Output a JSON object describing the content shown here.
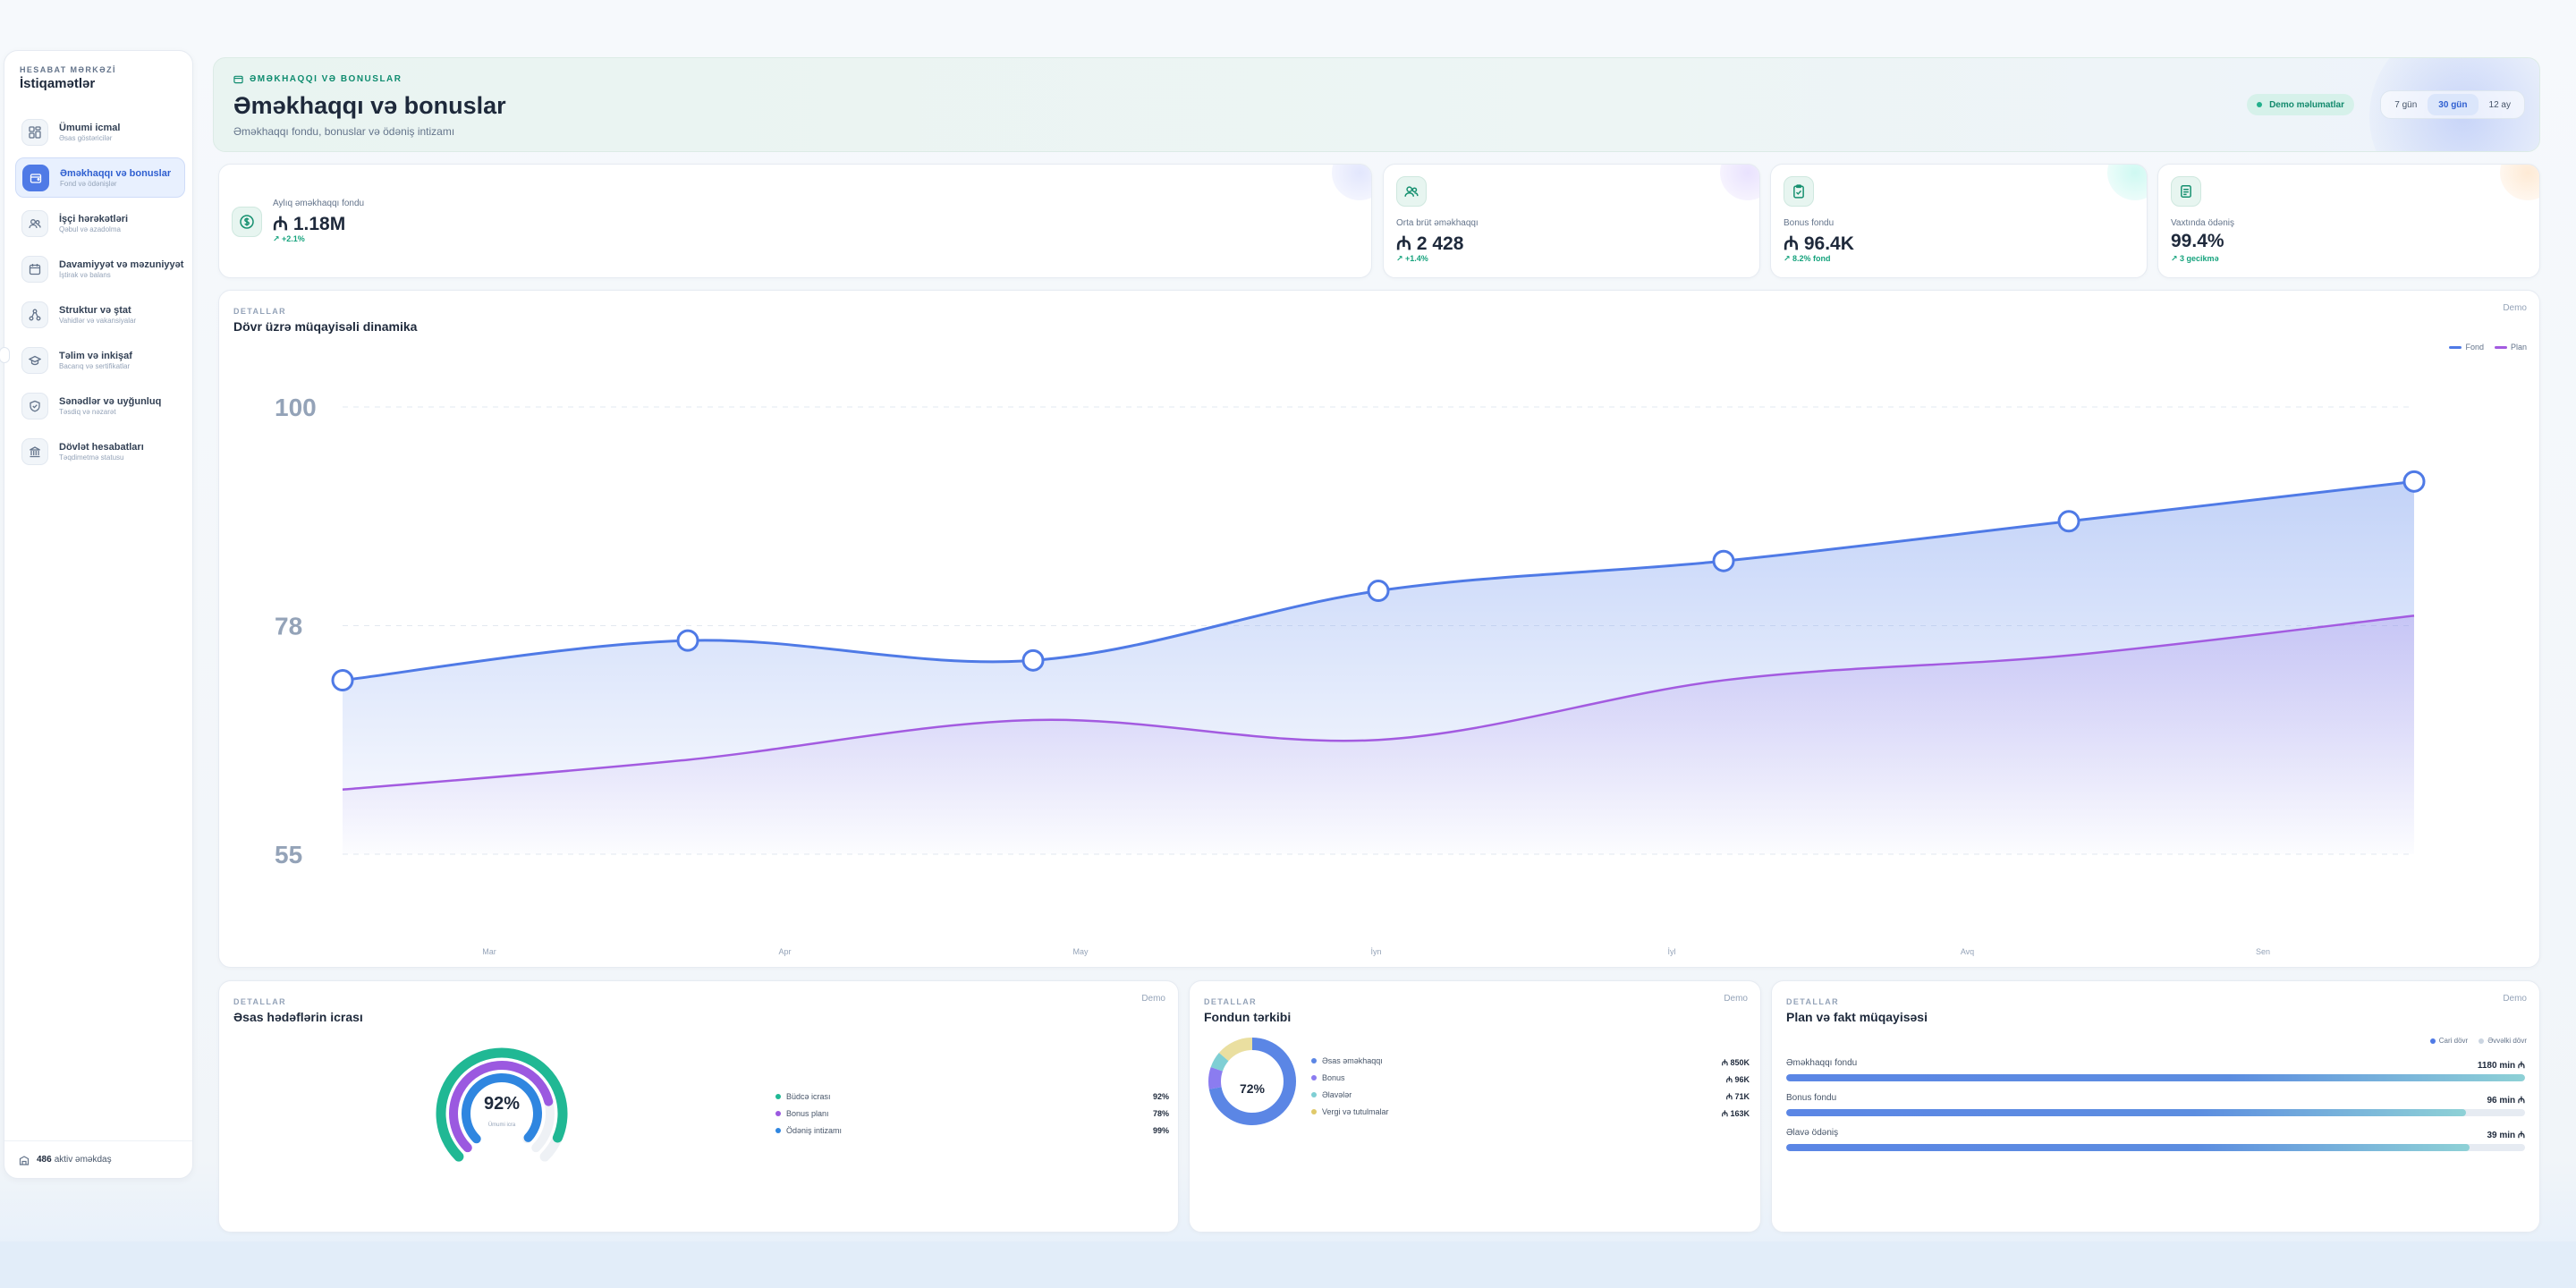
{
  "sidebar": {
    "eyebrow": "HESABAT MƏRKƏZİ",
    "title": "İstiqamətlər",
    "items": [
      {
        "label": "Ümumi icmal",
        "sub": "Əsas göstəricilər",
        "icon": "dashboard-icon"
      },
      {
        "label": "Əməkhaqqı və bonuslar",
        "sub": "Fond və ödənişlər",
        "icon": "wallet-icon"
      },
      {
        "label": "İşçi hərəkətləri",
        "sub": "Qəbul və azadolma",
        "icon": "users-icon"
      },
      {
        "label": "Davamiyyət və məzuniyyət",
        "sub": "İştirak və balans",
        "icon": "calendar-icon"
      },
      {
        "label": "Struktur və ştat",
        "sub": "Vahidlər və vakansiyalar",
        "icon": "org-chart-icon"
      },
      {
        "label": "Təlim və inkişaf",
        "sub": "Bacarıq və sertifikatlar",
        "icon": "graduation-cap-icon"
      },
      {
        "label": "Sənədlər və uyğunluq",
        "sub": "Təsdiq və nəzarət",
        "icon": "shield-icon"
      },
      {
        "label": "Dövlət hesabatları",
        "sub": "Təqdimetmə statusu",
        "icon": "bank-icon"
      }
    ],
    "footer_count": "486",
    "footer_text": "aktiv əməkdaş"
  },
  "header": {
    "eyebrow": "ƏMƏKHAQQI VƏ BONUSLAR",
    "title": "Əməkhaqqı və bonuslar",
    "subtitle": "Əməkhaqqı fondu, bonuslar və ödəniş intizamı",
    "demo_badge": "Demo məlumatlar",
    "periods": [
      "7 gün",
      "30 gün",
      "12 ay"
    ],
    "active_period": "30 gün"
  },
  "kpis": [
    {
      "label": "Aylıq əməkhaqqı fondu",
      "value": "₼ 1.18M",
      "delta": "↗ +2.1%",
      "icon": "dollar-icon",
      "accent": "#8b9cf5"
    },
    {
      "label": "Orta brüt əməkhaqqı",
      "value": "₼ 2 428",
      "delta": "↗ +1.4%",
      "icon": "users-icon",
      "accent": "#a78bfa"
    },
    {
      "label": "Bonus fondu",
      "value": "₼ 96.4K",
      "delta": "↗ 8.2% fond",
      "icon": "clipboard-check-icon",
      "accent": "#5eead4"
    },
    {
      "label": "Vaxtında ödəniş",
      "value": "99.4%",
      "delta": "↗ 3 gecikmə",
      "icon": "document-icon",
      "accent": "#fdba74"
    }
  ],
  "dynamics": {
    "eyebrow": "DETALLAR",
    "title": "Dövr üzrə müqayisəli dinamika",
    "demo": "Demo"
  },
  "chart_data": [
    {
      "type": "area",
      "title": "Dövr üzrə müqayisəli dinamika",
      "x_labels": [
        "Mar",
        "Apr",
        "May",
        "İyn",
        "İyl",
        "Avq",
        "Sen"
      ],
      "y_ticks": [
        55,
        78,
        100
      ],
      "ylim": [
        55,
        100
      ],
      "grid": true,
      "legend": "top-right",
      "series": [
        {
          "name": "Fond",
          "color": "#4f7ae6",
          "values": [
            72.5,
            76.5,
            74.5,
            81.5,
            84.5,
            88.5,
            92.5
          ]
        },
        {
          "name": "Plan",
          "color": "#a35be0",
          "values": [
            61.5,
            64.5,
            68.5,
            66.5,
            72.5,
            75.0,
            79.0
          ]
        }
      ]
    },
    {
      "type": "radial",
      "title": "Əsas hədəflərin icrası",
      "center_value": "92%",
      "center_label": "Ümumi icra",
      "series": [
        {
          "name": "Büdcə icrası",
          "value": 92,
          "color": "#20b894"
        },
        {
          "name": "Bonus planı",
          "value": 78,
          "color": "#9b59e0"
        },
        {
          "name": "Ödəniş intizamı",
          "value": 99,
          "color": "#2f86e0"
        }
      ],
      "value_labels": [
        "92%",
        "78%",
        "99%"
      ]
    },
    {
      "type": "pie",
      "title": "Fondun tərkibi",
      "center_value": "72%",
      "series": [
        {
          "name": "Əsas əməkhaqqı",
          "value": 850,
          "label": "₼ 850K",
          "color": "#5b86e5"
        },
        {
          "name": "Bonus",
          "value": 96,
          "label": "₼ 96K",
          "color": "#8b7cf0"
        },
        {
          "name": "Əlavələr",
          "value": 71,
          "label": "₼ 71K",
          "color": "#7fcfd4"
        },
        {
          "name": "Vergi və tutulmalar",
          "value": 163,
          "label": "₼ 163K",
          "color": "#eadfa0"
        }
      ]
    },
    {
      "type": "bar",
      "title": "Plan və fakt müqayisəsi",
      "legend_entries": [
        "Cari dövr",
        "Əvvəlki dövr"
      ],
      "categories": [
        "Əməkhaqqı fondu",
        "Bonus fondu",
        "Əlavə ödəniş"
      ],
      "value_labels": [
        "1180 min ₼",
        "96 min ₼",
        "39 min ₼"
      ],
      "progress": [
        1.0,
        0.92,
        0.925
      ]
    }
  ],
  "goals_card": {
    "eyebrow": "DETALLAR",
    "title": "Əsas hədəflərin icrası",
    "demo": "Demo"
  },
  "composition_card": {
    "eyebrow": "DETALLAR",
    "title": "Fondun tərkibi",
    "demo": "Demo"
  },
  "planfact_card": {
    "eyebrow": "DETALLAR",
    "title": "Plan və fakt müqayisəsi",
    "demo": "Demo"
  }
}
